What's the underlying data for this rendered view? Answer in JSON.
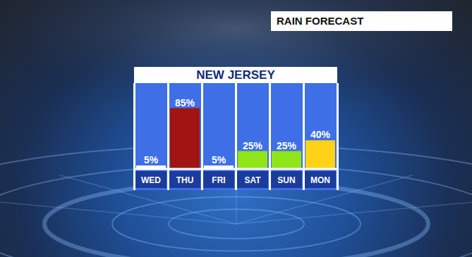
{
  "chart_data": {
    "type": "bar",
    "title": "RAIN FORECAST",
    "subtitle": "NEW JERSEY",
    "categories": [
      "WED",
      "THU",
      "FRI",
      "SAT",
      "SUN",
      "MON"
    ],
    "values": [
      5,
      85,
      5,
      25,
      25,
      40
    ],
    "value_labels": [
      "5%",
      "85%",
      "5%",
      "25%",
      "25%",
      "40%"
    ],
    "colors": [
      "#ffffff",
      "#a01414",
      "#ffffff",
      "#8ee619",
      "#8ee619",
      "#ffd21a"
    ],
    "ylim": [
      0,
      120
    ],
    "data_labels": true,
    "tick_labels": "x",
    "grid": false
  }
}
